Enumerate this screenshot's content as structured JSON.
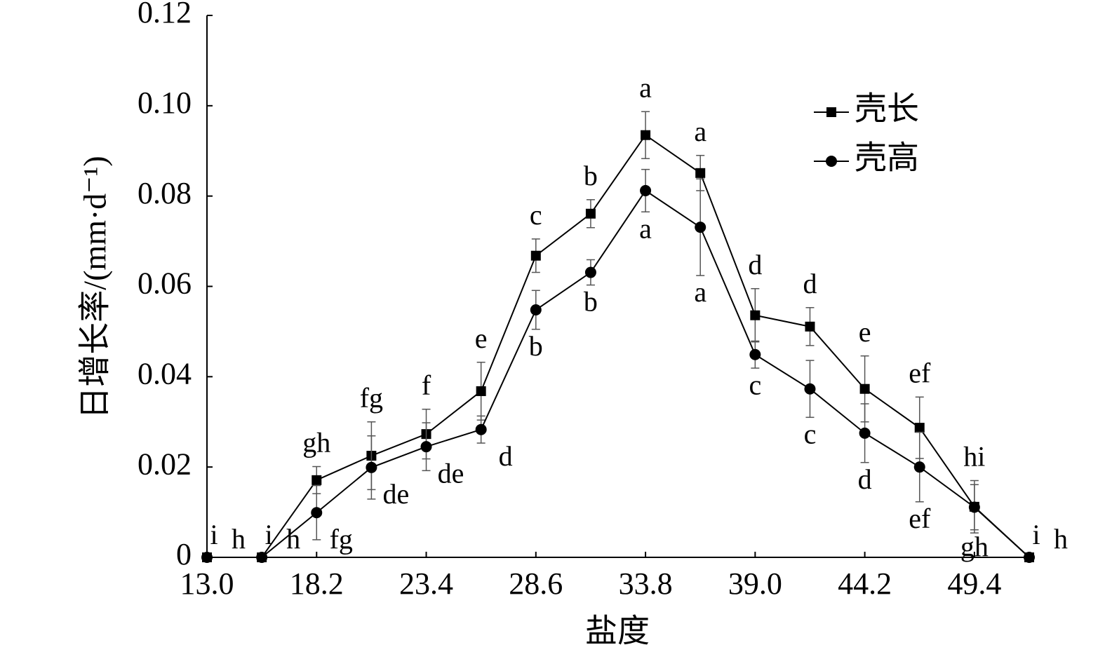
{
  "chart_data": {
    "type": "line",
    "xlabel": "盐度",
    "ylabel": "日增长率/(mm·d⁻¹)",
    "x": [
      13.0,
      15.6,
      18.2,
      20.8,
      23.4,
      26.0,
      28.6,
      31.2,
      33.8,
      36.4,
      39.0,
      41.6,
      44.2,
      46.8,
      49.4,
      52.0
    ],
    "xlim": [
      13.0,
      52.0
    ],
    "xticks": [
      {
        "value": 13.0,
        "label": "13.0"
      },
      18.2,
      23.4,
      28.6,
      33.8,
      {
        "value": 39.0,
        "label": "39.0"
      },
      44.2,
      49.4
    ],
    "ylim": [
      0,
      0.12
    ],
    "yticks": [
      0,
      0.02,
      0.04,
      0.06,
      0.08,
      {
        "value": 0.1,
        "label": "0.10"
      },
      0.12
    ],
    "legend": "upper right",
    "series": [
      {
        "name": "壳长",
        "color": "#000000",
        "marker": "square",
        "values": [
          0,
          0,
          0.0171,
          0.0225,
          0.0273,
          0.0368,
          0.0668,
          0.0761,
          0.0935,
          0.0851,
          0.0536,
          0.0511,
          0.0373,
          0.0287,
          0.0112,
          0
        ],
        "errors": [
          null,
          null,
          0.003,
          0.0075,
          0.0055,
          0.0064,
          0.0037,
          0.0031,
          0.0052,
          0.0039,
          0.0059,
          0.0042,
          0.0073,
          0.0068,
          0.0058,
          null
        ],
        "labels": [
          "i",
          "i",
          "gh",
          "fg",
          "f",
          "e",
          "c",
          "b",
          "a",
          "a",
          "d",
          "d",
          "e",
          "ef",
          "hi",
          "i"
        ]
      },
      {
        "name": "壳高",
        "color": "#000000",
        "marker": "circle",
        "values": [
          0,
          0,
          0.0099,
          0.0199,
          0.0245,
          0.0283,
          0.0548,
          0.0631,
          0.0812,
          0.0731,
          0.0449,
          0.0373,
          0.0275,
          0.02,
          0.0111,
          0
        ],
        "errors": [
          null,
          null,
          0.006,
          0.007,
          0.0053,
          0.003,
          0.0043,
          0.0028,
          0.0047,
          0.0107,
          0.003,
          0.0063,
          0.0065,
          0.0077,
          0.005,
          null
        ],
        "labels": [
          "h",
          "h",
          "fg",
          "de",
          "de",
          "d",
          "b",
          "b",
          "a",
          "a",
          "c",
          "c",
          "d",
          "ef",
          "gh",
          "h"
        ]
      }
    ]
  }
}
